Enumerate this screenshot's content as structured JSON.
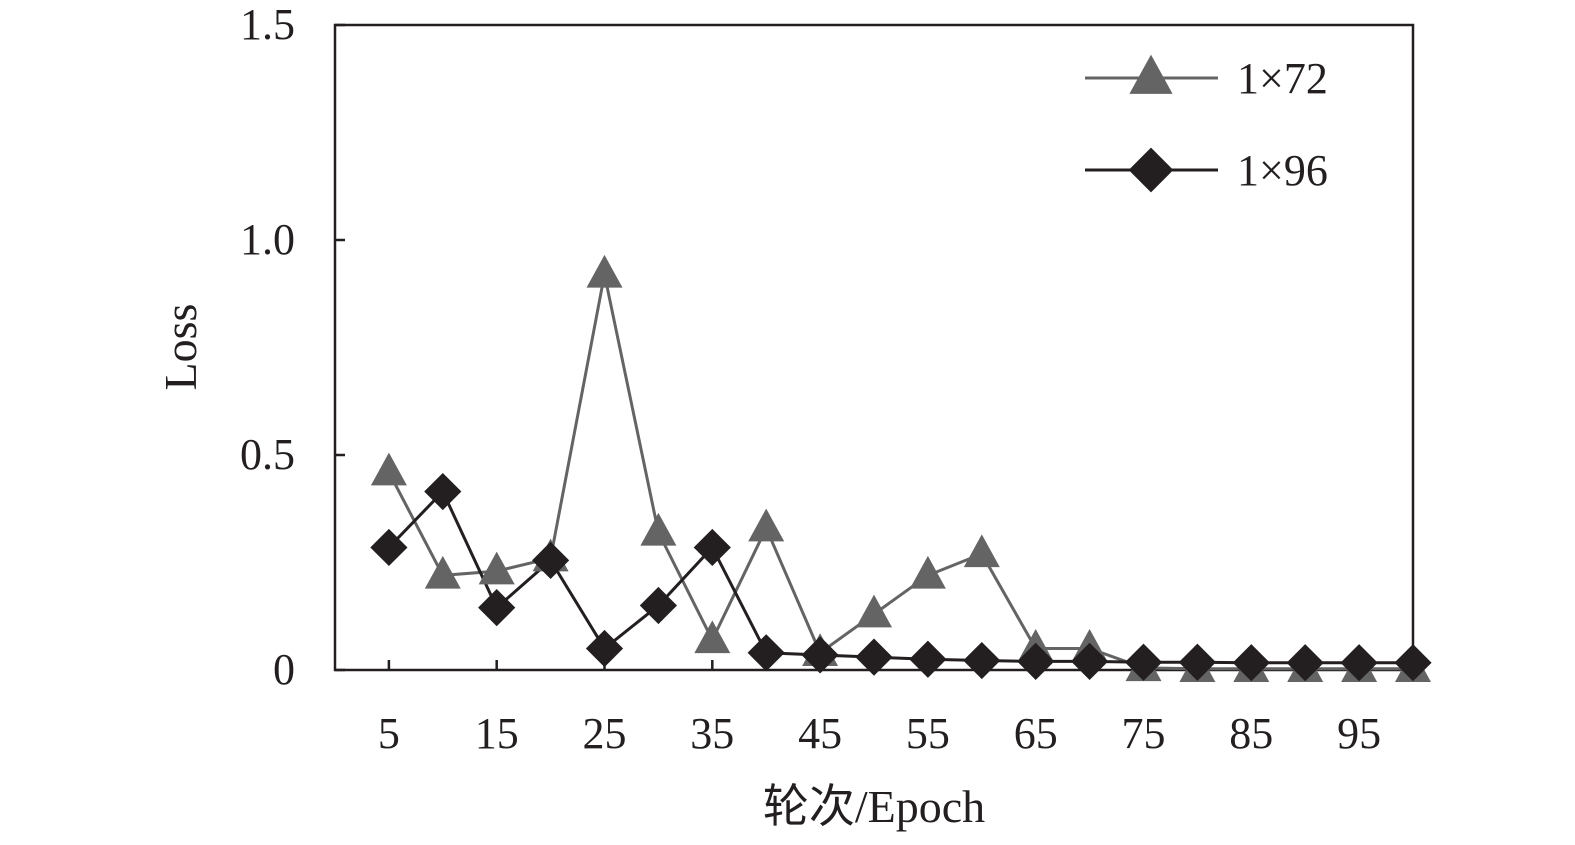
{
  "chart_data": {
    "type": "line",
    "xlabel": "轮次/Epoch",
    "ylabel": "Loss",
    "xlim": [
      0,
      100
    ],
    "ylim": [
      0,
      1.5
    ],
    "x_ticks": [
      5,
      15,
      25,
      35,
      45,
      55,
      65,
      75,
      85,
      95
    ],
    "y_ticks": [
      0,
      0.5,
      1.0,
      1.5
    ],
    "y_tick_labels": [
      "0",
      "0.5",
      "1.0",
      "1.5"
    ],
    "x": [
      5,
      10,
      15,
      20,
      25,
      30,
      35,
      40,
      45,
      50,
      55,
      60,
      65,
      70,
      75,
      80,
      85,
      90,
      95,
      100
    ],
    "legend_position": "top-right",
    "grid": false,
    "series": [
      {
        "name": "1×72",
        "marker": "triangle",
        "color": "#646464",
        "values": [
          0.46,
          0.22,
          0.23,
          0.26,
          0.92,
          0.32,
          0.07,
          0.33,
          0.04,
          0.13,
          0.22,
          0.27,
          0.05,
          0.05,
          0.005,
          0.003,
          0.003,
          0.003,
          0.003,
          0.003
        ]
      },
      {
        "name": "1×96",
        "marker": "diamond",
        "color": "#231f20",
        "values": [
          0.285,
          0.415,
          0.145,
          0.255,
          0.05,
          0.15,
          0.285,
          0.04,
          0.035,
          0.03,
          0.025,
          0.022,
          0.02,
          0.02,
          0.018,
          0.018,
          0.017,
          0.017,
          0.017,
          0.017
        ]
      }
    ]
  }
}
